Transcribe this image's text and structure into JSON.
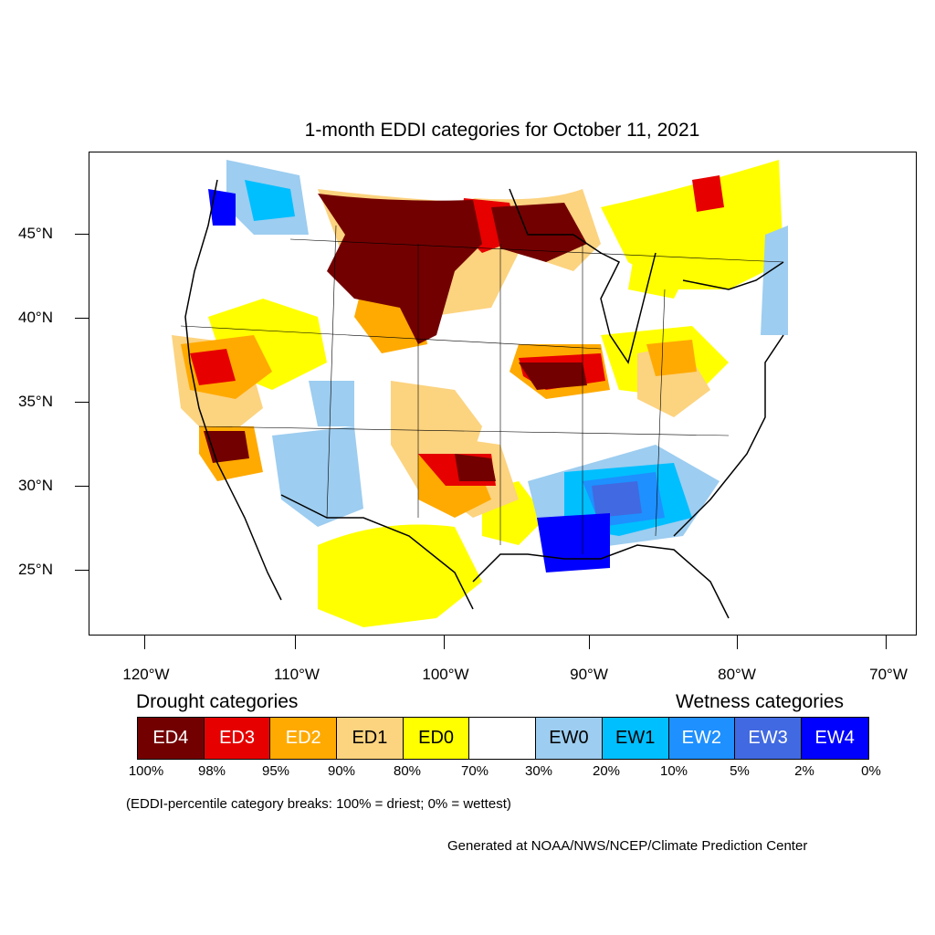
{
  "title": "1-month EDDI categories for October 11, 2021",
  "lat_labels": [
    "45°N",
    "40°N",
    "35°N",
    "30°N",
    "25°N"
  ],
  "lon_labels": [
    "120°W",
    "110°W",
    "100°W",
    "90°W",
    "80°W",
    "70°W"
  ],
  "legend": {
    "drought_heading": "Drought categories",
    "wetness_heading": "Wetness categories",
    "categories": [
      {
        "label": "ED4",
        "color": "#730000"
      },
      {
        "label": "ED3",
        "color": "#e60000"
      },
      {
        "label": "ED2",
        "color": "#ffaa00"
      },
      {
        "label": "ED1",
        "color": "#fcd37f"
      },
      {
        "label": "ED0",
        "color": "#ffff00"
      },
      {
        "label": "",
        "color": "#ffffff"
      },
      {
        "label": "EW0",
        "color": "#9dcdf0"
      },
      {
        "label": "EW1",
        "color": "#00bfff"
      },
      {
        "label": "EW2",
        "color": "#1e90ff"
      },
      {
        "label": "EW3",
        "color": "#4169e1"
      },
      {
        "label": "EW4",
        "color": "#0000ff"
      }
    ],
    "breaks": [
      "100%",
      "98%",
      "95%",
      "90%",
      "80%",
      "70%",
      "30%",
      "20%",
      "10%",
      "5%",
      "2%",
      "0%"
    ]
  },
  "note": "(EDDI-percentile category breaks: 100% = driest; 0% = wettest)",
  "credit": "Generated at NOAA/NWS/NCEP/Climate Prediction Center"
}
